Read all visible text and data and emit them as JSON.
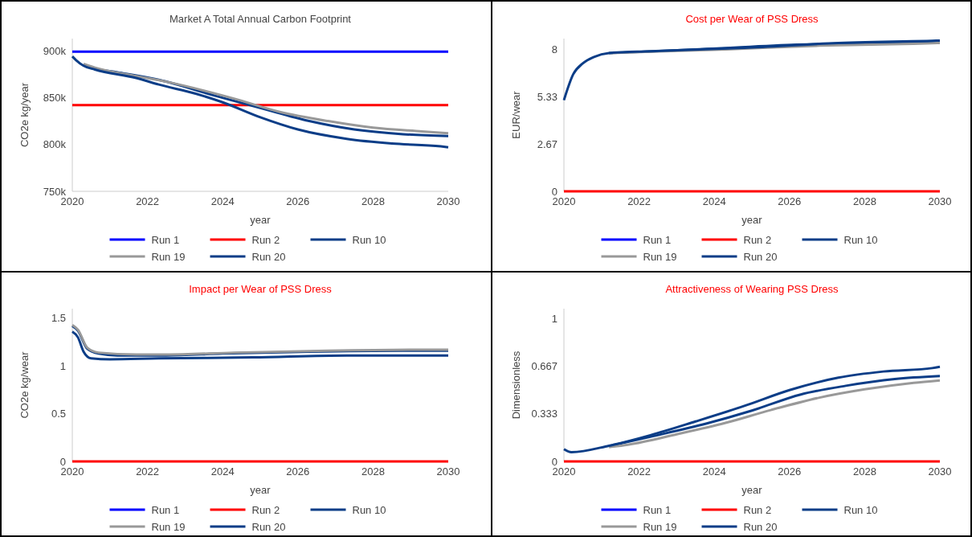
{
  "chart_data": [
    {
      "type": "line",
      "title": "Market A Total Annual Carbon Footprint",
      "xlabel": "year",
      "ylabel": "CO2e kg/year",
      "xlim": [
        2020,
        2030
      ],
      "xticks": [
        2020,
        2022,
        2024,
        2026,
        2028,
        2030
      ],
      "ylim": [
        750000,
        913000
      ],
      "yticks": [
        {
          "value": 750000,
          "label": "750k"
        },
        {
          "value": 800000,
          "label": "800k"
        },
        {
          "value": 850000,
          "label": "850k"
        },
        {
          "value": 900000,
          "label": "900k"
        }
      ],
      "grid": false,
      "legend": "bottom",
      "marker": "none",
      "line_style": "solid",
      "series": [
        {
          "name": "Run 1",
          "color": "#0000ff",
          "x": [
            2020,
            2030
          ],
          "values": [
            899000,
            899000
          ]
        },
        {
          "name": "Run 2",
          "color": "#ff0000",
          "x": [
            2020,
            2030
          ],
          "values": [
            842000,
            842000
          ]
        },
        {
          "name": "Run 10",
          "color": "#0b3d87",
          "x": [
            2020.3,
            2020.6,
            2021.2,
            2022.3,
            2023.8,
            2025,
            2026.3,
            2027.5,
            2028.8,
            2030
          ],
          "values": [
            885000,
            881000,
            877000,
            869000,
            852000,
            839000,
            825000,
            816000,
            811000,
            809000
          ]
        },
        {
          "name": "Run 19",
          "color": "#999999",
          "x": [
            2020.3,
            2020.6,
            2021.7,
            2022.5,
            2024.3,
            2025.5,
            2026.8,
            2028,
            2029.3,
            2030
          ],
          "values": [
            886000,
            882000,
            873000,
            867000,
            849000,
            835000,
            825000,
            818000,
            814000,
            812000
          ]
        },
        {
          "name": "Run 20",
          "color": "#0b3d87",
          "x": [
            2020,
            2020.1,
            2020.3,
            2020.6,
            2021.7,
            2022.3,
            2023.3,
            2024,
            2025,
            2026,
            2027.3,
            2028.5,
            2029.8,
            2030
          ],
          "values": [
            894000,
            890000,
            884000,
            880000,
            871000,
            864000,
            854000,
            845000,
            829000,
            816000,
            806000,
            801000,
            798000,
            797000
          ]
        }
      ]
    },
    {
      "type": "line",
      "title": "Cost per Wear of PSS Dress",
      "xlabel": "year",
      "ylabel": "EUR/wear",
      "xlim": [
        2020,
        2030
      ],
      "xticks": [
        2020,
        2022,
        2024,
        2026,
        2028,
        2030
      ],
      "ylim": [
        0,
        8.6
      ],
      "yticks": [
        0,
        2.67,
        5.33,
        8
      ],
      "grid": false,
      "legend": "bottom",
      "marker": "none",
      "line_style": "solid",
      "series": [
        {
          "name": "Run 1",
          "color": "#0000ff"
        },
        {
          "name": "Run 2",
          "color": "#ff0000",
          "x": [
            2020,
            2030
          ],
          "values": [
            0,
            0
          ]
        },
        {
          "name": "Run 10",
          "color": "#0b3d87",
          "x": [
            2021.2,
            2022.3,
            2023.8,
            2026.2,
            2028.8,
            2030
          ],
          "values": [
            7.79,
            7.88,
            8.02,
            8.26,
            8.38,
            8.42
          ]
        },
        {
          "name": "Run 19",
          "color": "#999999",
          "x": [
            2021.2,
            2022.3,
            2024.3,
            2026.8,
            2029.3,
            2030
          ],
          "values": [
            7.78,
            7.86,
            7.99,
            8.2,
            8.31,
            8.35
          ]
        },
        {
          "name": "Run 20",
          "color": "#0b3d87",
          "x": [
            2020,
            2020.25,
            2020.5,
            2020.8,
            2021.2,
            2022.3,
            2024.8,
            2027.3,
            2029.8,
            2030
          ],
          "values": [
            5.13,
            6.6,
            7.2,
            7.57,
            7.79,
            7.89,
            8.08,
            8.35,
            8.48,
            8.49
          ]
        }
      ]
    },
    {
      "type": "line",
      "title": "Impact per Wear of PSS Dress",
      "xlabel": "year",
      "ylabel": "CO2e kg/wear",
      "xlim": [
        2020,
        2030
      ],
      "xticks": [
        2020,
        2022,
        2024,
        2026,
        2028,
        2030
      ],
      "ylim": [
        0,
        1.6
      ],
      "yticks": [
        0,
        0.5,
        1,
        1.5
      ],
      "grid": false,
      "legend": "bottom",
      "marker": "none",
      "line_style": "solid",
      "series": [
        {
          "name": "Run 1",
          "color": "#0000ff"
        },
        {
          "name": "Run 2",
          "color": "#ff0000",
          "x": [
            2020,
            2030
          ],
          "values": [
            0,
            0
          ]
        },
        {
          "name": "Run 10",
          "color": "#0b3d87",
          "x": [
            2020,
            2020.15,
            2020.4,
            2020.7,
            2021.2,
            2022.5,
            2024,
            2026.3,
            2028.8,
            2030
          ],
          "values": [
            1.42,
            1.37,
            1.18,
            1.13,
            1.11,
            1.11,
            1.13,
            1.15,
            1.16,
            1.16
          ]
        },
        {
          "name": "Run 19",
          "color": "#999999",
          "x": [
            2020,
            2020.15,
            2020.4,
            2020.7,
            2021.7,
            2022.5,
            2024.3,
            2026.8,
            2029.3,
            2030
          ],
          "values": [
            1.43,
            1.38,
            1.19,
            1.14,
            1.12,
            1.12,
            1.14,
            1.16,
            1.17,
            1.17
          ]
        },
        {
          "name": "Run 20",
          "color": "#0b3d87",
          "x": [
            2020,
            2020.15,
            2020.3,
            2020.5,
            2021,
            2022.3,
            2024.8,
            2027.3,
            2029.8,
            2030
          ],
          "values": [
            1.36,
            1.3,
            1.15,
            1.08,
            1.07,
            1.08,
            1.09,
            1.11,
            1.11,
            1.11
          ]
        }
      ]
    },
    {
      "type": "line",
      "title": "Attractiveness of Wearing PSS Dress",
      "xlabel": "year",
      "ylabel": "Dimensionless",
      "xlim": [
        2020,
        2030
      ],
      "xticks": [
        2020,
        2022,
        2024,
        2026,
        2028,
        2030
      ],
      "ylim": [
        0,
        1.07
      ],
      "yticks": [
        0,
        0.333,
        0.667,
        1
      ],
      "grid": false,
      "legend": "bottom",
      "marker": "none",
      "line_style": "solid",
      "series": [
        {
          "name": "Run 1",
          "color": "#0000ff"
        },
        {
          "name": "Run 2",
          "color": "#ff0000",
          "x": [
            2020,
            2030
          ],
          "values": [
            0,
            0
          ]
        },
        {
          "name": "Run 10",
          "color": "#0b3d87",
          "x": [
            2021.2,
            2022.3,
            2023.8,
            2025,
            2026.3,
            2027.5,
            2028.8,
            2030
          ],
          "values": [
            0.108,
            0.173,
            0.266,
            0.356,
            0.469,
            0.53,
            0.577,
            0.598
          ]
        },
        {
          "name": "Run 19",
          "color": "#999999",
          "x": [
            2021.2,
            2021.7,
            2023,
            2024.3,
            2025.5,
            2026.8,
            2028,
            2029.3,
            2030
          ],
          "values": [
            0.1,
            0.117,
            0.19,
            0.27,
            0.36,
            0.447,
            0.505,
            0.551,
            0.568
          ]
        },
        {
          "name": "Run 20",
          "color": "#0b3d87",
          "x": [
            2020,
            2020.2,
            2021.2,
            2022.3,
            2023.5,
            2024.8,
            2026,
            2027.3,
            2028.5,
            2029.8,
            2030
          ],
          "values": [
            0.086,
            0.065,
            0.11,
            0.184,
            0.28,
            0.389,
            0.5,
            0.587,
            0.63,
            0.654,
            0.663
          ]
        }
      ]
    }
  ]
}
